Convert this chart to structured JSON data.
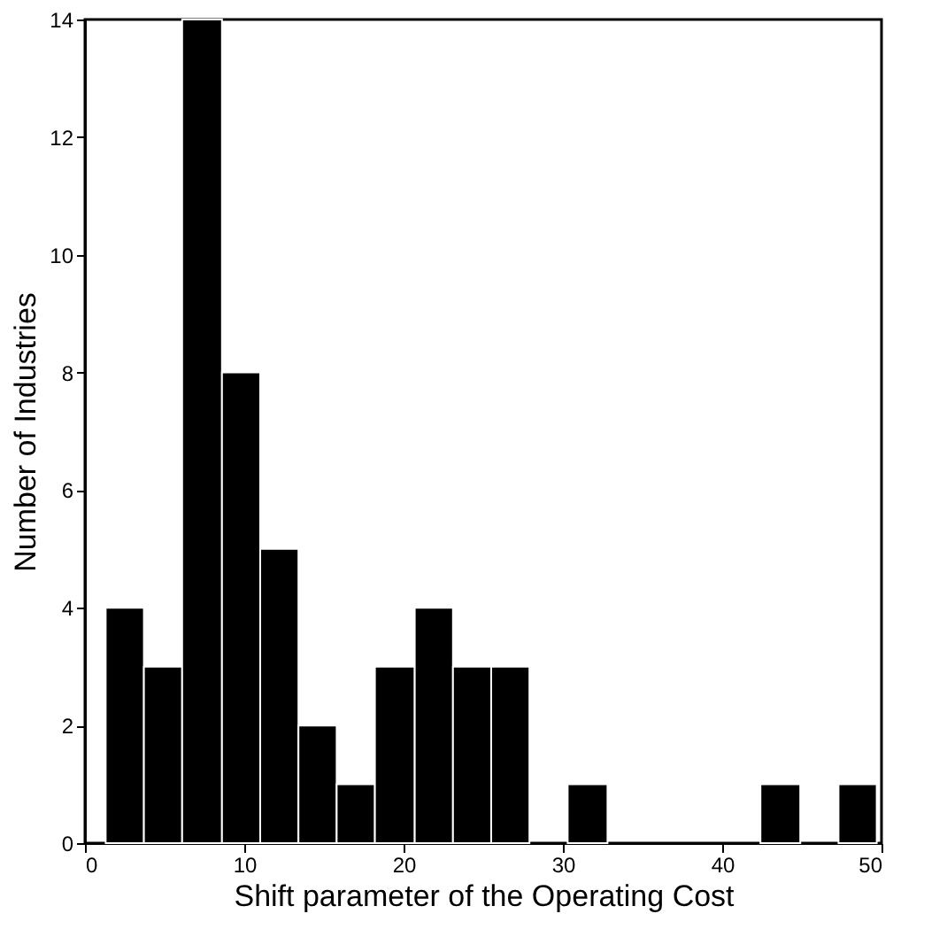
{
  "chart_data": {
    "type": "histogram",
    "xlabel": "Shift parameter of the Operating Cost",
    "ylabel": "Number of Industries",
    "bins": [
      1.3,
      3.7,
      6.1,
      8.6,
      11.0,
      13.4,
      15.8,
      18.2,
      20.7,
      23.1,
      25.5,
      27.9,
      30.3,
      32.8,
      42.4,
      44.9,
      47.3,
      49.7
    ],
    "values": [
      4,
      3,
      14,
      8,
      5,
      2,
      1,
      3,
      4,
      3,
      3,
      0,
      1,
      0,
      1,
      0,
      1
    ],
    "color": "#000000",
    "xlim": [
      0,
      50
    ],
    "xticks": [
      0,
      10,
      20,
      30,
      40,
      50
    ],
    "ylim": [
      0,
      14
    ],
    "yticks": [
      0,
      2,
      4,
      6,
      8,
      10,
      12,
      14
    ],
    "grid": false
  }
}
